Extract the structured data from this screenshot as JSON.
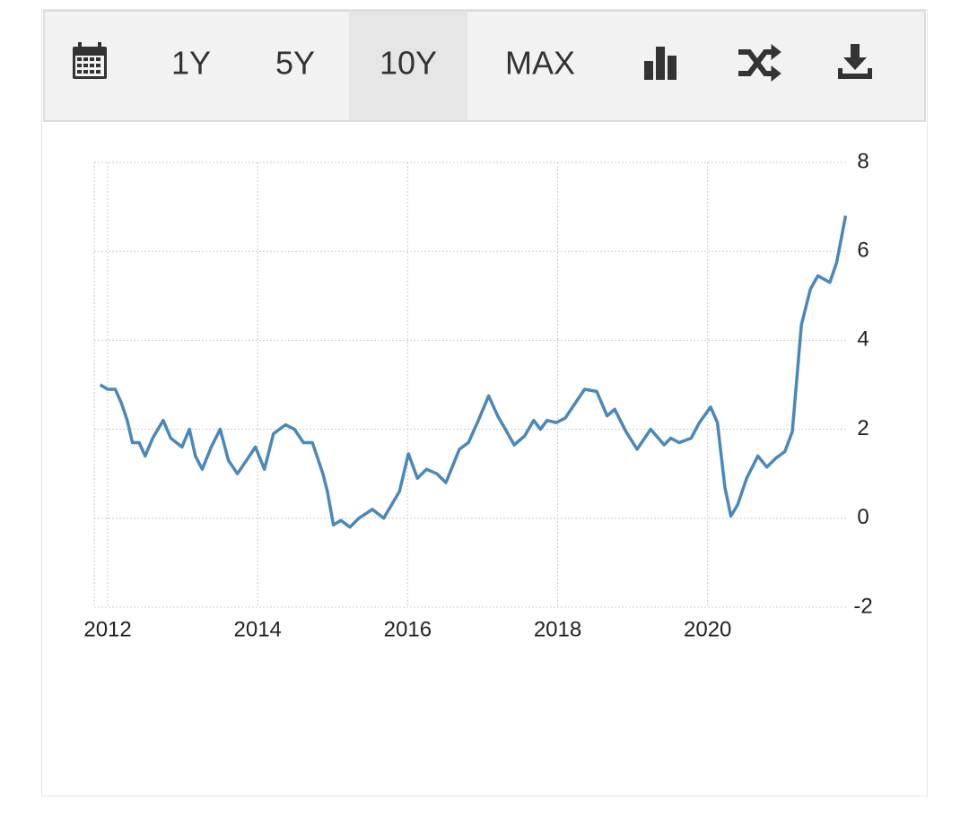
{
  "toolbar": {
    "buttons": [
      "1Y",
      "5Y",
      "10Y",
      "MAX"
    ],
    "active": 2
  },
  "chart_data": {
    "type": "line",
    "x": [
      2011.9,
      2012.0,
      2012.1,
      2012.18,
      2012.26,
      2012.33,
      2012.42,
      2012.5,
      2012.6,
      2012.74,
      2012.84,
      2012.99,
      2013.09,
      2013.17,
      2013.26,
      2013.38,
      2013.5,
      2013.61,
      2013.73,
      2013.85,
      2013.97,
      2014.09,
      2014.21,
      2014.37,
      2014.49,
      2014.61,
      2014.73,
      2014.87,
      2014.93,
      2015.01,
      2015.11,
      2015.23,
      2015.35,
      2015.53,
      2015.68,
      2015.89,
      2016.01,
      2016.13,
      2016.25,
      2016.39,
      2016.51,
      2016.69,
      2016.81,
      2016.93,
      2017.08,
      2017.2,
      2017.32,
      2017.42,
      2017.56,
      2017.68,
      2017.77,
      2017.86,
      2017.98,
      2018.1,
      2018.22,
      2018.36,
      2018.52,
      2018.66,
      2018.76,
      2018.91,
      2019.06,
      2019.24,
      2019.42,
      2019.51,
      2019.62,
      2019.78,
      2019.89,
      2020.04,
      2020.13,
      2020.23,
      2020.31,
      2020.4,
      2020.52,
      2020.67,
      2020.79,
      2020.91,
      2021.03,
      2021.13,
      2021.25,
      2021.37,
      2021.47,
      2021.63,
      2021.72,
      2021.84
    ],
    "series": [
      {
        "color": "#4a87ba",
        "values": [
          3.0,
          2.9,
          2.9,
          2.6,
          2.2,
          1.7,
          1.7,
          1.4,
          1.8,
          2.2,
          1.8,
          1.6,
          2.0,
          1.4,
          1.1,
          1.6,
          2.0,
          1.3,
          1.0,
          1.3,
          1.6,
          1.1,
          1.9,
          2.1,
          2.0,
          1.7,
          1.7,
          1.0,
          0.6,
          -0.15,
          -0.05,
          -0.2,
          0.0,
          0.2,
          0.0,
          0.6,
          1.45,
          0.9,
          1.1,
          1.0,
          0.8,
          1.55,
          1.7,
          2.15,
          2.75,
          2.3,
          1.95,
          1.65,
          1.85,
          2.2,
          2.0,
          2.2,
          2.15,
          2.25,
          2.55,
          2.9,
          2.85,
          2.3,
          2.45,
          1.95,
          1.55,
          2.0,
          1.65,
          1.8,
          1.7,
          1.8,
          2.15,
          2.5,
          2.15,
          0.7,
          0.05,
          0.3,
          0.9,
          1.4,
          1.15,
          1.35,
          1.5,
          1.95,
          4.35,
          5.15,
          5.45,
          5.3,
          5.75,
          6.8
        ]
      }
    ],
    "xlim": [
      2011.82,
      2021.87
    ],
    "xticks": [
      2012,
      2014,
      2016,
      2018,
      2020
    ],
    "ylim": [
      -2,
      8
    ],
    "yticks": [
      -2,
      0,
      2,
      4,
      6,
      8
    ],
    "grid": true
  }
}
